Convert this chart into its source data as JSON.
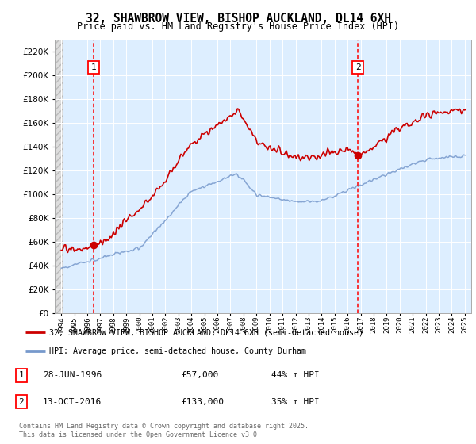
{
  "title": "32, SHAWBROW VIEW, BISHOP AUCKLAND, DL14 6XH",
  "subtitle": "Price paid vs. HM Land Registry's House Price Index (HPI)",
  "legend_line1": "32, SHAWBROW VIEW, BISHOP AUCKLAND, DL14 6XH (semi-detached house)",
  "legend_line2": "HPI: Average price, semi-detached house, County Durham",
  "footer": "Contains HM Land Registry data © Crown copyright and database right 2025.\nThis data is licensed under the Open Government Licence v3.0.",
  "transaction1_date": "28-JUN-1996",
  "transaction1_price": "£57,000",
  "transaction1_hpi": "44% ↑ HPI",
  "transaction1_x": 1996.49,
  "transaction1_y": 57000,
  "transaction2_date": "13-OCT-2016",
  "transaction2_price": "£133,000",
  "transaction2_hpi": "35% ↑ HPI",
  "transaction2_x": 2016.79,
  "transaction2_y": 133000,
  "ylim": [
    0,
    230000
  ],
  "xlim": [
    1993.5,
    2025.5
  ],
  "red_color": "#cc0000",
  "blue_color": "#7799cc",
  "bg_color": "#ddeeff",
  "grid_color": "#ffffff"
}
